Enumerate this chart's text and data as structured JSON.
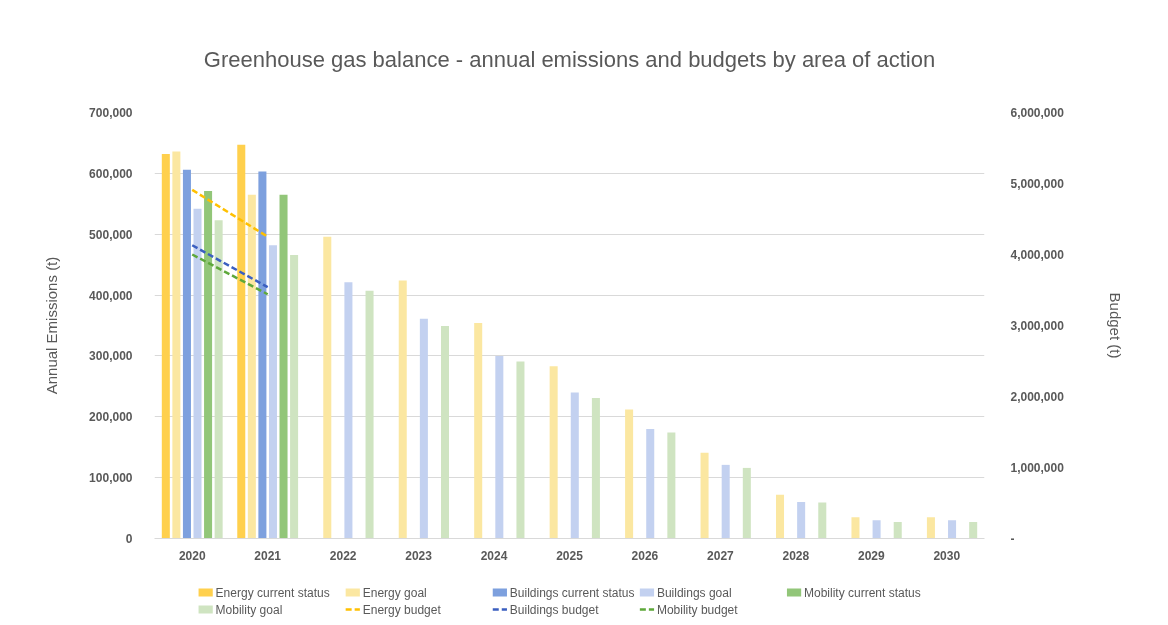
{
  "chart_data": {
    "type": "bar",
    "title": "Greenhouse gas balance - annual emissions and budgets by area of action",
    "ylabel": "Annual Emissions (t)",
    "y2label": "Budget (t)",
    "categories": [
      "2020",
      "2021",
      "2022",
      "2023",
      "2024",
      "2025",
      "2026",
      "2027",
      "2028",
      "2029",
      "2030"
    ],
    "series": [
      {
        "name": "Energy current status",
        "color": "#ffd04d",
        "values": [
          632000,
          647000,
          null,
          null,
          null,
          null,
          null,
          null,
          null,
          null,
          null
        ]
      },
      {
        "name": "Energy goal",
        "color": "#fbe7a1",
        "values": [
          636000,
          565000,
          496000,
          424000,
          354000,
          283000,
          212000,
          141000,
          72000,
          35000,
          35000
        ]
      },
      {
        "name": "Buildings current status",
        "color": "#7da0de",
        "values": [
          606000,
          603000,
          null,
          null,
          null,
          null,
          null,
          null,
          null,
          null,
          null
        ]
      },
      {
        "name": "Buildings goal",
        "color": "#c3d1f0",
        "values": [
          542000,
          482000,
          421000,
          361000,
          300000,
          240000,
          180000,
          121000,
          60000,
          30000,
          30000
        ]
      },
      {
        "name": "Mobility current status",
        "color": "#92c679",
        "values": [
          571000,
          565000,
          null,
          null,
          null,
          null,
          null,
          null,
          null,
          null,
          null
        ]
      },
      {
        "name": "Mobility goal",
        "color": "#cfe4c1",
        "values": [
          523000,
          466000,
          407000,
          349000,
          291000,
          231000,
          174000,
          116000,
          59000,
          27000,
          27000
        ]
      },
      {
        "name": "Energy budget",
        "type": "line",
        "axis": "y2",
        "color": "#ffc000",
        "values": [
          4910000,
          4250000,
          null,
          null,
          null,
          null,
          null,
          null,
          null,
          null,
          null
        ]
      },
      {
        "name": "Buildings budget",
        "type": "line",
        "axis": "y2",
        "color": "#3b5fc0",
        "values": [
          4130000,
          3540000,
          null,
          null,
          null,
          null,
          null,
          null,
          null,
          null,
          null
        ]
      },
      {
        "name": "Mobility budget",
        "type": "line",
        "axis": "y2",
        "color": "#5ea83a",
        "values": [
          4000000,
          3440000,
          null,
          null,
          null,
          null,
          null,
          null,
          null,
          null,
          null
        ]
      }
    ],
    "ylim": [
      0,
      700000
    ],
    "yticks": [
      0,
      {
        "value": 100000,
        "label": "100,000"
      },
      {
        "value": 200000,
        "label": "200,000"
      },
      {
        "value": 300000,
        "label": "300,000"
      },
      {
        "value": 400000,
        "label": "400,000"
      },
      {
        "value": 500000,
        "label": "500,000"
      },
      {
        "value": 600000,
        "label": "600,000"
      },
      {
        "value": 700000,
        "label": "700,000"
      }
    ],
    "y2lim": [
      0,
      6000000
    ],
    "y2ticks": [
      {
        "value": 0,
        "label": "-"
      },
      {
        "value": 1000000,
        "label": "1,000,000"
      },
      {
        "value": 2000000,
        "label": "2,000,000"
      },
      {
        "value": 3000000,
        "label": "3,000,000"
      },
      {
        "value": 4000000,
        "label": "4,000,000"
      },
      {
        "value": 5000000,
        "label": "5,000,000"
      },
      {
        "value": 6000000,
        "label": "6,000,000"
      }
    ],
    "grid": "y",
    "legend": "bottom",
    "line_style": "dashed"
  }
}
